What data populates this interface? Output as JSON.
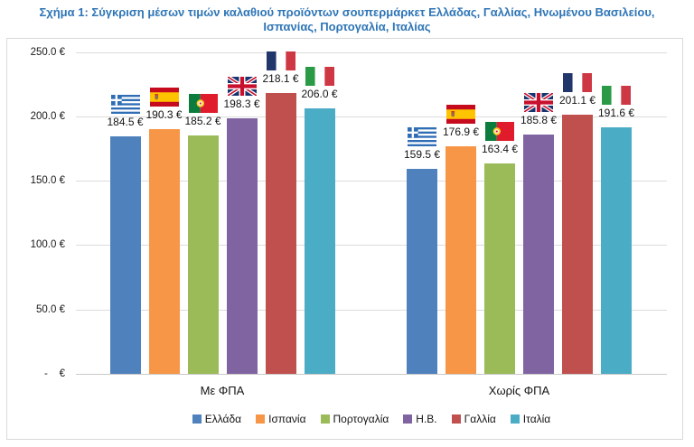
{
  "title": {
    "line1": "Σχήμα 1: Σύγκριση μέσων τιμών καλαθιού προϊόντων σουπερμάρκετ Ελλάδας, Γαλλίας, Ηνωμένου Βασιλείου,",
    "line2": "Ισπανίας, Πορτογαλία, Ιταλίας",
    "color": "#2E75B6"
  },
  "chart_data": {
    "type": "bar",
    "title": "Σχήμα 1: Σύγκριση μέσων τιμών καλαθιού προϊόντων σουπερμάρκετ Ελλάδας, Γαλλίας, Ηνωμένου Βασιλείου, Ισπανίας, Πορτογαλία, Ιταλίας",
    "categories": [
      "Με ΦΠΑ",
      "Χωρίς ΦΠΑ"
    ],
    "series": [
      {
        "name": "Ελλάδα",
        "key": "greece",
        "flag_icon": "greece-flag-icon",
        "color": "#4F81BD",
        "values": [
          184.5,
          159.5
        ]
      },
      {
        "name": "Ισπανία",
        "key": "spain",
        "flag_icon": "spain-flag-icon",
        "color": "#F79646",
        "values": [
          190.3,
          176.9
        ]
      },
      {
        "name": "Πορτογαλία",
        "key": "portugal",
        "flag_icon": "portugal-flag-icon",
        "color": "#9BBB59",
        "values": [
          185.2,
          163.4
        ]
      },
      {
        "name": "Η.Β.",
        "key": "uk",
        "flag_icon": "uk-flag-icon",
        "color": "#8064A2",
        "values": [
          198.3,
          185.8
        ]
      },
      {
        "name": "Γαλλία",
        "key": "france",
        "flag_icon": "france-flag-icon",
        "color": "#C0504D",
        "values": [
          218.1,
          201.1
        ]
      },
      {
        "name": "Ιταλία",
        "key": "italy",
        "flag_icon": "italy-flag-icon",
        "color": "#4BACC6",
        "values": [
          206.0,
          191.6
        ]
      }
    ],
    "value_suffix": " €",
    "y_axis": {
      "min": 0,
      "max": 250,
      "step": 50,
      "tick_labels": [
        "-    €",
        "50.0 €",
        "100.0 €",
        "150.0 €",
        "200.0 €",
        "250.0 €"
      ]
    },
    "grid": true,
    "legend_position": "bottom"
  }
}
